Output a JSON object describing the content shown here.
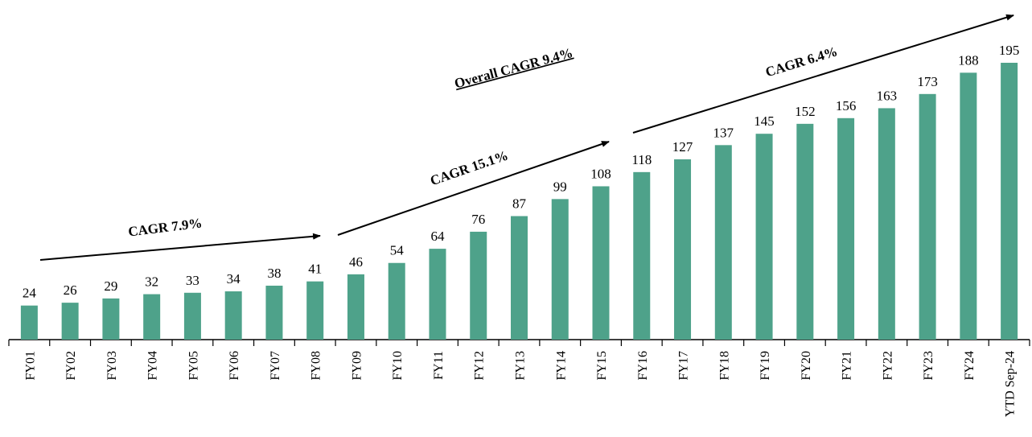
{
  "chart_data": {
    "type": "bar",
    "categories": [
      "FY01",
      "FY02",
      "FY03",
      "FY04",
      "FY05",
      "FY06",
      "FY07",
      "FY08",
      "FY09",
      "FY10",
      "FY11",
      "FY12",
      "FY13",
      "FY14",
      "FY15",
      "FY16",
      "FY17",
      "FY18",
      "FY19",
      "FY20",
      "FY21",
      "FY22",
      "FY23",
      "FY24",
      "YTD Sep-24"
    ],
    "values": [
      24,
      26,
      29,
      32,
      33,
      34,
      38,
      41,
      46,
      54,
      64,
      76,
      87,
      99,
      108,
      118,
      127,
      137,
      145,
      152,
      156,
      163,
      173,
      188,
      195
    ],
    "color": "#4ea28a",
    "annotations": [
      "CAGR 7.9%",
      "CAGR 15.1%",
      "CAGR 6.4%",
      "Overall CAGR 9.4%"
    ]
  }
}
